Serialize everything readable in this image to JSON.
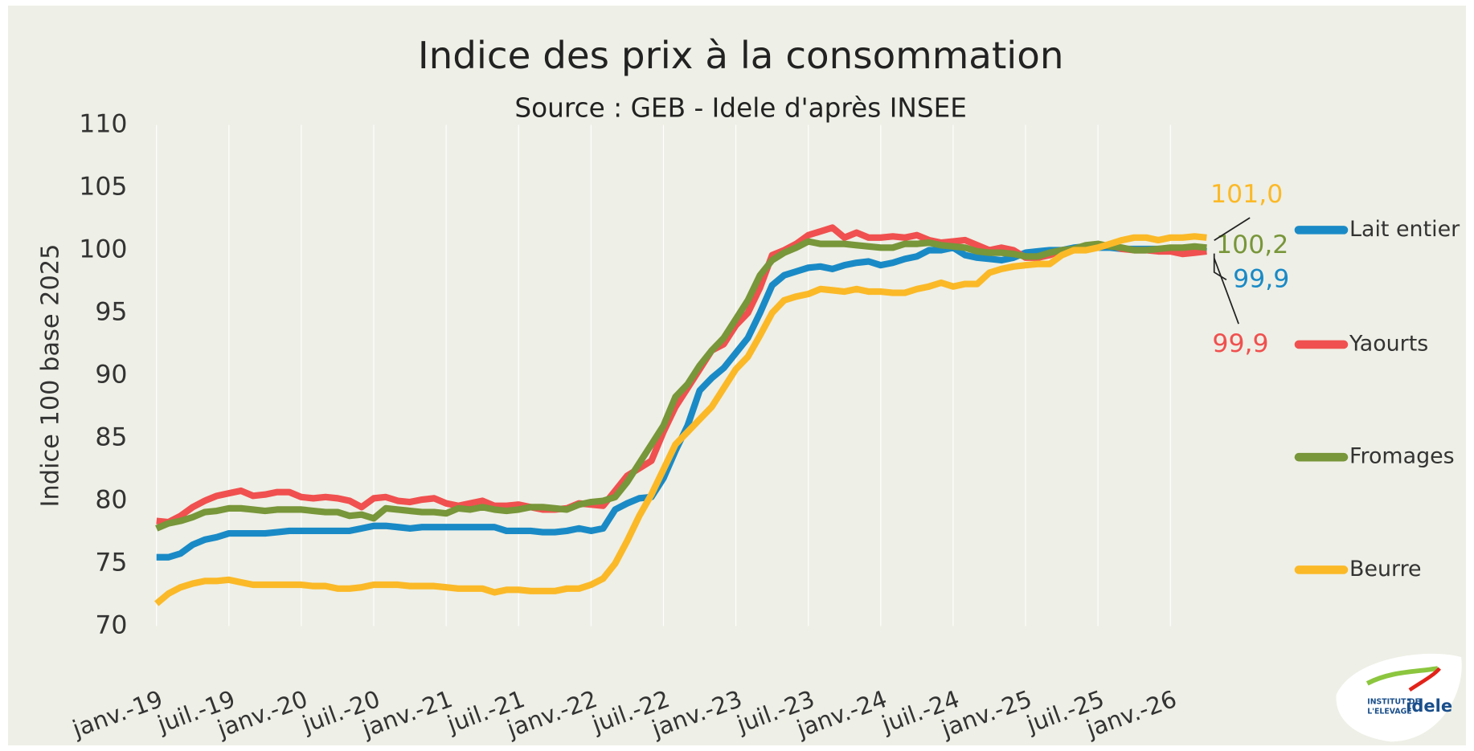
{
  "chart_data": {
    "type": "line",
    "title": "Indice des prix à la consommation",
    "subtitle": "Source : GEB - Idele d'après INSEE",
    "ylabel": "Indice 100 base 2025",
    "categories": [
      "janv.-19",
      null,
      null,
      null,
      null,
      null,
      "juil.-19",
      null,
      null,
      null,
      null,
      null,
      "janv.-20",
      null,
      null,
      null,
      null,
      null,
      "juil.-20",
      null,
      null,
      null,
      null,
      null,
      "janv.-21",
      null,
      null,
      null,
      null,
      null,
      "juil.-21",
      null,
      null,
      null,
      null,
      null,
      "janv.-22",
      null,
      null,
      null,
      null,
      null,
      "juil.-22",
      null,
      null,
      null,
      null,
      null,
      "janv.-23",
      null,
      null,
      null,
      null,
      null,
      "juil.-23",
      null,
      null,
      null,
      null,
      null,
      "janv.-24",
      null,
      null,
      null,
      null,
      null,
      "juil.-24",
      null,
      null,
      null,
      null,
      null,
      "janv.-25",
      null,
      null,
      null,
      null,
      null,
      "juil.-25",
      null,
      null,
      null,
      null,
      null,
      "janv.-26",
      null,
      null,
      null
    ],
    "ylim": [
      70,
      110
    ],
    "yticks": [
      70,
      75,
      80,
      85,
      90,
      95,
      100,
      105,
      110
    ],
    "xgrid": true,
    "legend": "right",
    "series": [
      {
        "name": "Lait entier",
        "color": "#1a8ac6",
        "values": [
          75.5,
          75.5,
          75.8,
          76.5,
          76.9,
          77.1,
          77.4,
          77.4,
          77.4,
          77.4,
          77.5,
          77.6,
          77.6,
          77.6,
          77.6,
          77.6,
          77.6,
          77.8,
          78,
          78,
          77.9,
          77.8,
          77.9,
          77.9,
          77.9,
          77.9,
          77.9,
          77.9,
          77.9,
          77.6,
          77.6,
          77.6,
          77.5,
          77.5,
          77.6,
          77.8,
          77.6,
          77.8,
          79.3,
          79.8,
          80.2,
          80.3,
          81.8,
          84,
          86,
          88.8,
          89.8,
          90.6,
          91.8,
          93,
          95,
          97.2,
          98,
          98.3,
          98.6,
          98.7,
          98.5,
          98.8,
          99,
          99.1,
          98.8,
          99,
          99.3,
          99.5,
          100,
          100,
          100.2,
          99.6,
          99.4,
          99.3,
          99.2,
          99.4,
          99.8,
          99.9,
          100,
          100,
          100.2,
          100.3,
          100.2,
          100.2,
          100.1,
          100.1,
          100.1,
          100.1,
          100.1,
          100,
          100,
          99.9
        ],
        "value_labels": {
          "87": "99,9"
        }
      },
      {
        "name": "Yaourts",
        "color": "#f0504f",
        "values": [
          78.4,
          78.3,
          78.8,
          79.5,
          80,
          80.4,
          80.6,
          80.8,
          80.4,
          80.5,
          80.7,
          80.7,
          80.3,
          80.2,
          80.3,
          80.2,
          80,
          79.5,
          80.2,
          80.3,
          80,
          79.9,
          80.1,
          80.2,
          79.8,
          79.6,
          79.8,
          80,
          79.6,
          79.6,
          79.7,
          79.5,
          79.3,
          79.3,
          79.4,
          79.8,
          79.7,
          79.6,
          80.8,
          82,
          82.6,
          83.2,
          85.5,
          87.5,
          89,
          90.5,
          92,
          92.5,
          94,
          95,
          97,
          99.6,
          100,
          100.5,
          101.2,
          101.5,
          101.8,
          101,
          101.4,
          101,
          101,
          101.1,
          101,
          101.2,
          100.8,
          100.6,
          100.7,
          100.8,
          100.4,
          100,
          100.2,
          100,
          99.4,
          99.4,
          99.6,
          100,
          100,
          100.2,
          100.3,
          100.4,
          100.1,
          100,
          100,
          99.9,
          99.9,
          99.7,
          99.8,
          99.9
        ],
        "value_labels": {
          "87": "99,9"
        }
      },
      {
        "name": "Fromages",
        "color": "#78963a",
        "values": [
          77.8,
          78.2,
          78.4,
          78.7,
          79.1,
          79.2,
          79.4,
          79.4,
          79.3,
          79.2,
          79.3,
          79.3,
          79.3,
          79.2,
          79.1,
          79.1,
          78.8,
          78.9,
          78.6,
          79.4,
          79.3,
          79.2,
          79.1,
          79.1,
          79,
          79.4,
          79.3,
          79.5,
          79.3,
          79.2,
          79.3,
          79.5,
          79.5,
          79.4,
          79.3,
          79.7,
          79.9,
          80,
          80.3,
          81.5,
          83,
          84.5,
          86,
          88.3,
          89.3,
          90.8,
          92,
          93,
          94.5,
          96,
          98,
          99.2,
          99.8,
          100.2,
          100.7,
          100.5,
          100.5,
          100.5,
          100.4,
          100.3,
          100.2,
          100.2,
          100.5,
          100.5,
          100.6,
          100.4,
          100.3,
          100.2,
          99.9,
          99.8,
          99.8,
          99.7,
          99.5,
          99.5,
          99.8,
          100,
          100.1,
          100.4,
          100.5,
          100.3,
          100.2,
          100,
          100,
          100.1,
          100.2,
          100.2,
          100.3,
          100.2
        ],
        "value_labels": {
          "87": "100,2"
        }
      },
      {
        "name": "Beurre",
        "color": "#fbb928",
        "values": [
          71.8,
          72.6,
          73.1,
          73.4,
          73.6,
          73.6,
          73.7,
          73.5,
          73.3,
          73.3,
          73.3,
          73.3,
          73.3,
          73.2,
          73.2,
          73,
          73,
          73.1,
          73.3,
          73.3,
          73.3,
          73.2,
          73.2,
          73.2,
          73.1,
          73,
          73,
          73,
          72.7,
          72.9,
          72.9,
          72.8,
          72.8,
          72.8,
          73,
          73,
          73.3,
          73.8,
          75,
          76.8,
          78.8,
          80.5,
          82.5,
          84.5,
          85.5,
          86.5,
          87.5,
          89,
          90.5,
          91.5,
          93.2,
          95,
          96,
          96.3,
          96.5,
          96.9,
          96.8,
          96.7,
          96.9,
          96.7,
          96.7,
          96.6,
          96.6,
          96.9,
          97.1,
          97.4,
          97.1,
          97.3,
          97.3,
          98.2,
          98.5,
          98.7,
          98.8,
          98.9,
          98.9,
          99.6,
          100,
          100,
          100.2,
          100.5,
          100.8,
          101,
          101,
          100.8,
          101,
          101,
          101.1,
          101
        ],
        "value_labels": {
          "87": "101,0"
        }
      }
    ],
    "logo": {
      "line1": "INSTITUT DE",
      "line2": "L'ELEVAGE",
      "brand": "idele"
    }
  }
}
